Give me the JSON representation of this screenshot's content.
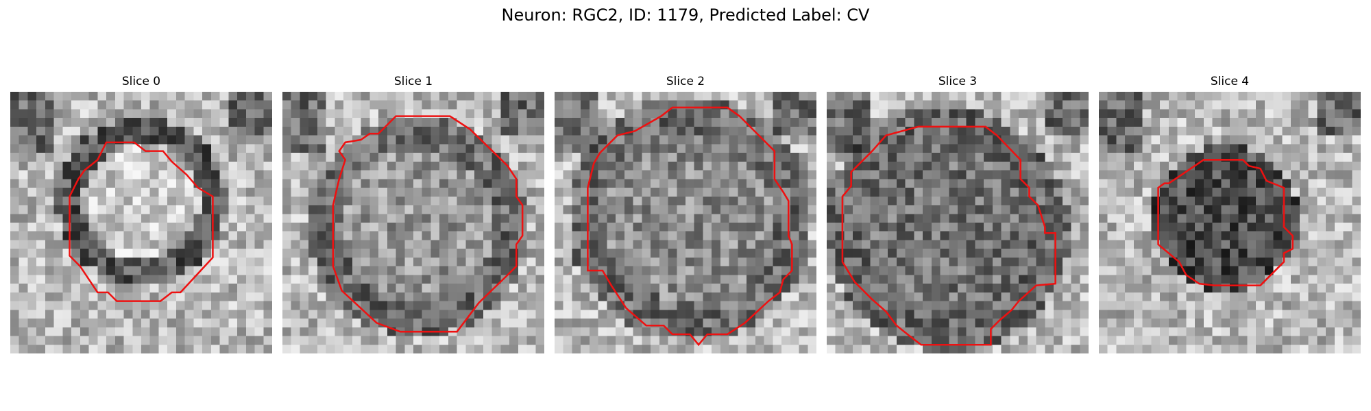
{
  "figure": {
    "title": "Neuron: RGC2, ID: 1179, Predicted Label: CV"
  },
  "colors": {
    "contour": "#ee1111"
  },
  "panels": [
    {
      "title": "Slice 0",
      "rim": 0.34,
      "inner": 0.8,
      "seed": 11
    },
    {
      "title": "Slice 1",
      "rim": 0.42,
      "inner": 0.6,
      "seed": 23
    },
    {
      "title": "Slice 2",
      "rim": 0.43,
      "inner": 0.55,
      "seed": 37
    },
    {
      "title": "Slice 3",
      "rim": 0.41,
      "inner": 0.45,
      "seed": 41
    },
    {
      "title": "Slice 4",
      "rim": 0.3,
      "inner": 0.3,
      "seed": 53
    }
  ]
}
